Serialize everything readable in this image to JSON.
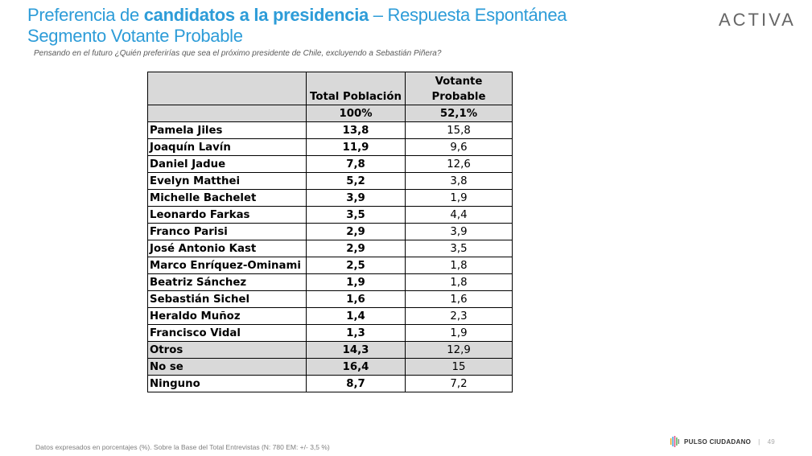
{
  "header": {
    "title_part1": "Preferencia de ",
    "title_bold": "candidatos a la presidencia",
    "title_part2": " – Respuesta Espontánea",
    "title_line2": "Segmento Votante Probable",
    "subtitle": "Pensando en el futuro ¿Quién preferirías que sea el próximo presidente de Chile, excluyendo a Sebastián Piñera?",
    "logo_text": "ACTIVA"
  },
  "table": {
    "headers": [
      "",
      "Total Población",
      "Votante Probable"
    ],
    "totals": [
      "",
      "100%",
      "52,1%"
    ],
    "rows": [
      {
        "name": "Pamela Jiles",
        "total": "13,8",
        "votante": "15,8",
        "shaded": false
      },
      {
        "name": "Joaquín Lavín",
        "total": "11,9",
        "votante": "9,6",
        "shaded": false
      },
      {
        "name": "Daniel Jadue",
        "total": "7,8",
        "votante": "12,6",
        "shaded": false
      },
      {
        "name": "Evelyn Matthei",
        "total": "5,2",
        "votante": "3,8",
        "shaded": false
      },
      {
        "name": "Michelle Bachelet",
        "total": "3,9",
        "votante": "1,9",
        "shaded": false
      },
      {
        "name": "Leonardo Farkas",
        "total": "3,5",
        "votante": "4,4",
        "shaded": false
      },
      {
        "name": "Franco Parisi",
        "total": "2,9",
        "votante": "3,9",
        "shaded": false
      },
      {
        "name": "José Antonio Kast",
        "total": "2,9",
        "votante": "3,5",
        "shaded": false
      },
      {
        "name": "Marco Enríquez-Ominami",
        "total": "2,5",
        "votante": "1,8",
        "shaded": false
      },
      {
        "name": "Beatriz Sánchez",
        "total": "1,9",
        "votante": "1,8",
        "shaded": false
      },
      {
        "name": "Sebastián Sichel",
        "total": "1,6",
        "votante": "1,6",
        "shaded": false
      },
      {
        "name": "Heraldo Muñoz",
        "total": "1,4",
        "votante": "2,3",
        "shaded": false
      },
      {
        "name": "Francisco Vidal",
        "total": "1,3",
        "votante": "1,9",
        "shaded": false
      },
      {
        "name": "Otros",
        "total": "14,3",
        "votante": "12,9",
        "shaded": true
      },
      {
        "name": "No se",
        "total": "16,4",
        "votante": "15",
        "shaded": true
      },
      {
        "name": "Ninguno",
        "total": "8,7",
        "votante": "7,2",
        "shaded": false
      }
    ]
  },
  "footer": {
    "note": "Datos expresados en porcentajes (%). Sobre la Base del Total Entrevistas (N: 780  EM: +/- 3,5 %)",
    "brand": "PULSO CIUDADANO",
    "separator": "|",
    "page_number": "49",
    "brand_icon": "bars-logo-icon",
    "brand_colors": [
      "#f2a31b",
      "#2d9cd8",
      "#e0457b",
      "#4cb050",
      "#7f7f7f"
    ]
  }
}
